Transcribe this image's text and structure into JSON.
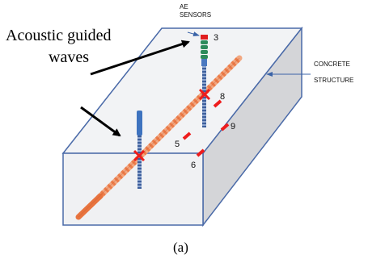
{
  "annotations": {
    "acoustic_line1": "Acoustic guided",
    "acoustic_line2": "waves",
    "ae_line1": "AE",
    "ae_line2": "SENSORS",
    "concrete_line1": "CONCRETE",
    "concrete_line2": "STRUCTURE"
  },
  "sensor_labels": [
    "3",
    "8",
    "9",
    "5",
    "6"
  ],
  "caption": "(a)",
  "colors": {
    "block_edge": "#4a6aa8",
    "block_face": "#f3f4f6",
    "block_side": "#d6d7d9",
    "rebar": "#f08a55",
    "marker": "#ee1c1c",
    "vertical_bar": "#4a78c0",
    "sensor_stack": "#2e8b57"
  }
}
